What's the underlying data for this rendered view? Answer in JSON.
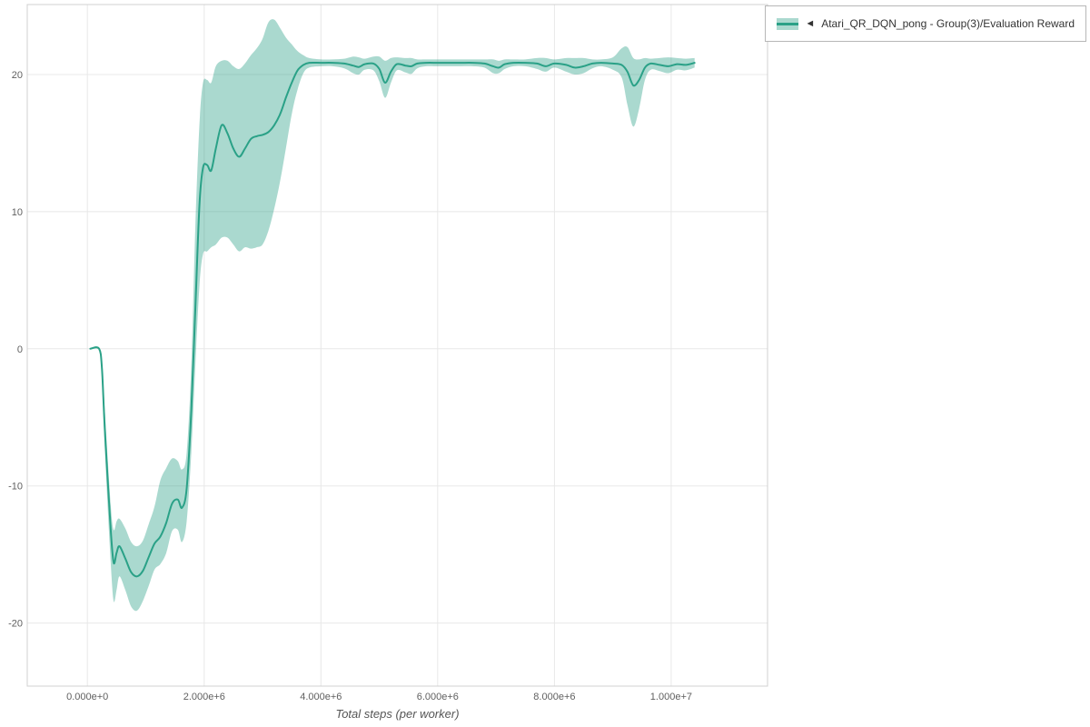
{
  "chart_data": {
    "type": "line",
    "title": "",
    "xlabel": "Total steps (per worker)",
    "ylabel": "",
    "grid": true,
    "x_range": [
      -1030000,
      11650000
    ],
    "y_range": [
      -24.6,
      25.1
    ],
    "x_ticks": [
      {
        "v": 0,
        "label": "0.000e+0"
      },
      {
        "v": 2000000,
        "label": "2.000e+6"
      },
      {
        "v": 4000000,
        "label": "4.000e+6"
      },
      {
        "v": 6000000,
        "label": "6.000e+6"
      },
      {
        "v": 8000000,
        "label": "8.000e+6"
      },
      {
        "v": 10000000,
        "label": "1.000e+7"
      }
    ],
    "y_ticks": [
      {
        "v": -20,
        "label": "-20"
      },
      {
        "v": -10,
        "label": "-10"
      },
      {
        "v": 0,
        "label": "0"
      },
      {
        "v": 10,
        "label": "10"
      },
      {
        "v": 20,
        "label": "20"
      }
    ],
    "legend": {
      "position": "top-right",
      "marker_glyph": "◄",
      "label": "Atari_QR_DQN_pong - Group(3)/Evaluation Reward"
    },
    "series": [
      {
        "name": "Atari_QR_DQN_pong - Group(3)/Evaluation Reward",
        "color": "#2aa187",
        "band_fill": "rgba(42,161,135,0.4)",
        "points_format": [
          "x_steps",
          "mean",
          "lower",
          "upper"
        ],
        "points": [
          [
            50000,
            0,
            0,
            0
          ],
          [
            200000,
            0,
            0,
            0
          ],
          [
            250000,
            -1.5,
            -2.2,
            -0.9
          ],
          [
            300000,
            -6,
            -7.5,
            -4.6
          ],
          [
            400000,
            -13.2,
            -15.6,
            -11.4
          ],
          [
            450000,
            -15.6,
            -18.4,
            -13.2
          ],
          [
            500000,
            -14.9,
            -17.6,
            -12.6
          ],
          [
            550000,
            -14.4,
            -16.6,
            -12.4
          ],
          [
            650000,
            -15.3,
            -17.6,
            -13.1
          ],
          [
            750000,
            -16.3,
            -18.8,
            -14.1
          ],
          [
            850000,
            -16.6,
            -19.1,
            -14.4
          ],
          [
            950000,
            -16.2,
            -18.4,
            -14.0
          ],
          [
            1050000,
            -15.2,
            -17.3,
            -12.8
          ],
          [
            1150000,
            -14.2,
            -16.1,
            -11.5
          ],
          [
            1250000,
            -13.7,
            -15.7,
            -9.6
          ],
          [
            1350000,
            -12.7,
            -14.9,
            -8.7
          ],
          [
            1450000,
            -11.3,
            -13.3,
            -8.0
          ],
          [
            1550000,
            -11.0,
            -13.2,
            -8.2
          ],
          [
            1620000,
            -11.6,
            -14.1,
            -8.8
          ],
          [
            1700000,
            -10.2,
            -12.6,
            -7.6
          ],
          [
            1780000,
            -4.5,
            -7.6,
            -1.2
          ],
          [
            1850000,
            3.0,
            -1.2,
            9.0
          ],
          [
            1920000,
            10.5,
            4.6,
            16.4
          ],
          [
            1980000,
            13.2,
            6.9,
            19.4
          ],
          [
            2050000,
            13.4,
            7.1,
            19.6
          ],
          [
            2120000,
            13.0,
            7.4,
            19.4
          ],
          [
            2200000,
            14.6,
            7.6,
            20.6
          ],
          [
            2300000,
            16.3,
            8.1,
            21.0
          ],
          [
            2400000,
            15.7,
            8.1,
            21.0
          ],
          [
            2500000,
            14.6,
            7.6,
            20.6
          ],
          [
            2600000,
            14.0,
            7.1,
            20.4
          ],
          [
            2700000,
            14.6,
            7.4,
            20.8
          ],
          [
            2800000,
            15.3,
            7.3,
            21.4
          ],
          [
            2900000,
            15.5,
            7.4,
            21.9
          ],
          [
            3000000,
            15.6,
            7.6,
            22.6
          ],
          [
            3100000,
            15.8,
            8.6,
            23.8
          ],
          [
            3200000,
            16.3,
            10.2,
            24.0
          ],
          [
            3300000,
            17.1,
            12.2,
            23.4
          ],
          [
            3400000,
            18.3,
            14.6,
            22.7
          ],
          [
            3500000,
            19.4,
            17.1,
            22.2
          ],
          [
            3600000,
            20.3,
            18.9,
            21.7
          ],
          [
            3700000,
            20.7,
            20.1,
            21.4
          ],
          [
            3800000,
            20.85,
            20.5,
            21.2
          ],
          [
            4000000,
            20.85,
            20.6,
            21.1
          ],
          [
            4200000,
            20.85,
            20.6,
            21.1
          ],
          [
            4400000,
            20.8,
            20.45,
            21.15
          ],
          [
            4550000,
            20.65,
            20.1,
            21.3
          ],
          [
            4650000,
            20.55,
            20.0,
            21.25
          ],
          [
            4750000,
            20.75,
            20.35,
            21.15
          ],
          [
            4900000,
            20.8,
            20.3,
            21.3
          ],
          [
            5000000,
            20.4,
            19.5,
            21.3
          ],
          [
            5100000,
            19.4,
            18.3,
            21.0
          ],
          [
            5200000,
            20.2,
            19.4,
            21.2
          ],
          [
            5300000,
            20.75,
            20.3,
            21.25
          ],
          [
            5450000,
            20.65,
            20.15,
            21.2
          ],
          [
            5550000,
            20.6,
            20.05,
            21.2
          ],
          [
            5650000,
            20.8,
            20.45,
            21.1
          ],
          [
            5800000,
            20.85,
            20.6,
            21.1
          ],
          [
            6000000,
            20.85,
            20.6,
            21.1
          ],
          [
            6200000,
            20.85,
            20.6,
            21.1
          ],
          [
            6400000,
            20.85,
            20.6,
            21.1
          ],
          [
            6600000,
            20.85,
            20.6,
            21.1
          ],
          [
            6800000,
            20.8,
            20.5,
            21.1
          ],
          [
            6950000,
            20.6,
            20.1,
            21.1
          ],
          [
            7050000,
            20.5,
            20.1,
            21.0
          ],
          [
            7150000,
            20.75,
            20.4,
            21.1
          ],
          [
            7300000,
            20.85,
            20.6,
            21.1
          ],
          [
            7500000,
            20.85,
            20.6,
            21.1
          ],
          [
            7700000,
            20.8,
            20.4,
            21.2
          ],
          [
            7850000,
            20.6,
            20.2,
            21.2
          ],
          [
            8000000,
            20.8,
            20.5,
            21.1
          ],
          [
            8200000,
            20.7,
            20.2,
            21.2
          ],
          [
            8350000,
            20.5,
            20.0,
            21.2
          ],
          [
            8500000,
            20.6,
            20.1,
            21.2
          ],
          [
            8650000,
            20.8,
            20.45,
            21.1
          ],
          [
            8800000,
            20.85,
            20.6,
            21.1
          ],
          [
            9000000,
            20.8,
            20.35,
            21.25
          ],
          [
            9150000,
            20.7,
            19.8,
            21.9
          ],
          [
            9250000,
            20.2,
            17.8,
            22.0
          ],
          [
            9350000,
            19.2,
            16.2,
            21.2
          ],
          [
            9450000,
            19.6,
            17.5,
            21.1
          ],
          [
            9550000,
            20.5,
            19.6,
            21.2
          ],
          [
            9650000,
            20.8,
            20.35,
            21.15
          ],
          [
            9800000,
            20.7,
            20.25,
            21.2
          ],
          [
            9950000,
            20.6,
            20.1,
            21.25
          ],
          [
            10100000,
            20.75,
            20.35,
            21.2
          ],
          [
            10250000,
            20.7,
            20.3,
            21.15
          ],
          [
            10400000,
            20.85,
            20.5,
            21.2
          ]
        ]
      }
    ],
    "style": {
      "grid_color": "#e8e8e8",
      "border_color": "#d0d0d0",
      "tick_label_color": "#606060",
      "axis_label_color": "#555555",
      "background": "#ffffff"
    }
  }
}
